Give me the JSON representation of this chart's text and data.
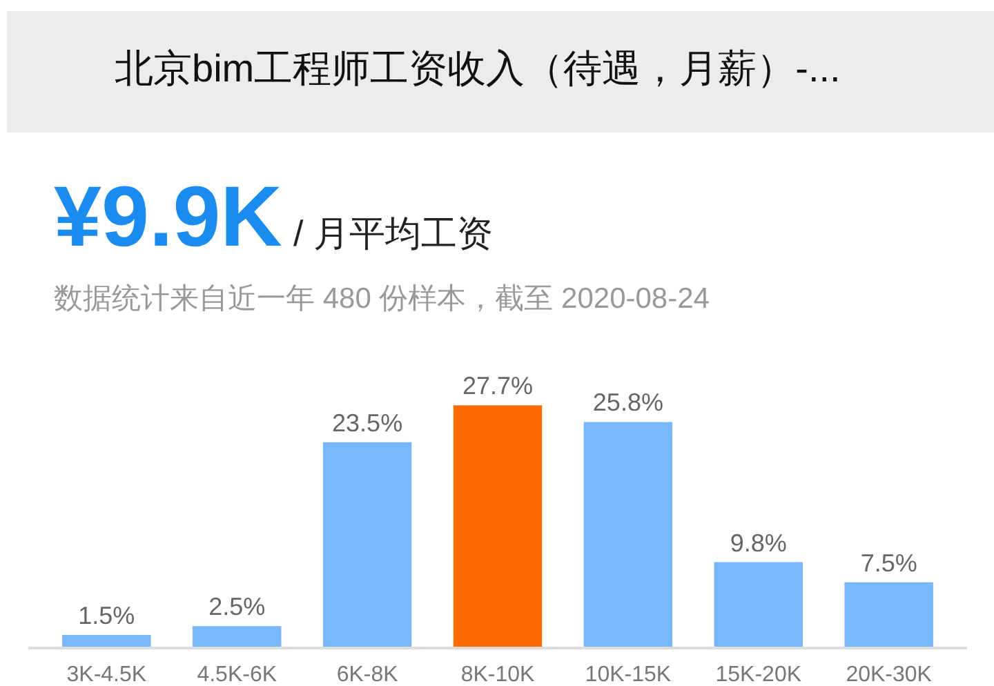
{
  "chart_data": {
    "type": "bar",
    "title": "北京bim工程师工资收入（待遇，月薪）-...",
    "annotations": [
      "¥9.9K",
      "/ 月平均工资",
      "数据统计来自近一年 480 份样本，截至 2020-08-24"
    ],
    "categories": [
      "3K-4.5K",
      "4.5K-6K",
      "6K-8K",
      "8K-10K",
      "10K-15K",
      "15K-20K",
      "20K-30K"
    ],
    "values": [
      1.5,
      2.5,
      23.5,
      27.7,
      25.8,
      9.8,
      7.5
    ],
    "value_labels": [
      "1.5%",
      "2.5%",
      "23.5%",
      "27.7%",
      "25.8%",
      "9.8%",
      "7.5%"
    ],
    "colors": [
      "#78b7fa",
      "#78b7fa",
      "#78b7fa",
      "#ff6a00",
      "#78b7fa",
      "#78b7fa",
      "#78b7fa"
    ],
    "grid": false
  }
}
